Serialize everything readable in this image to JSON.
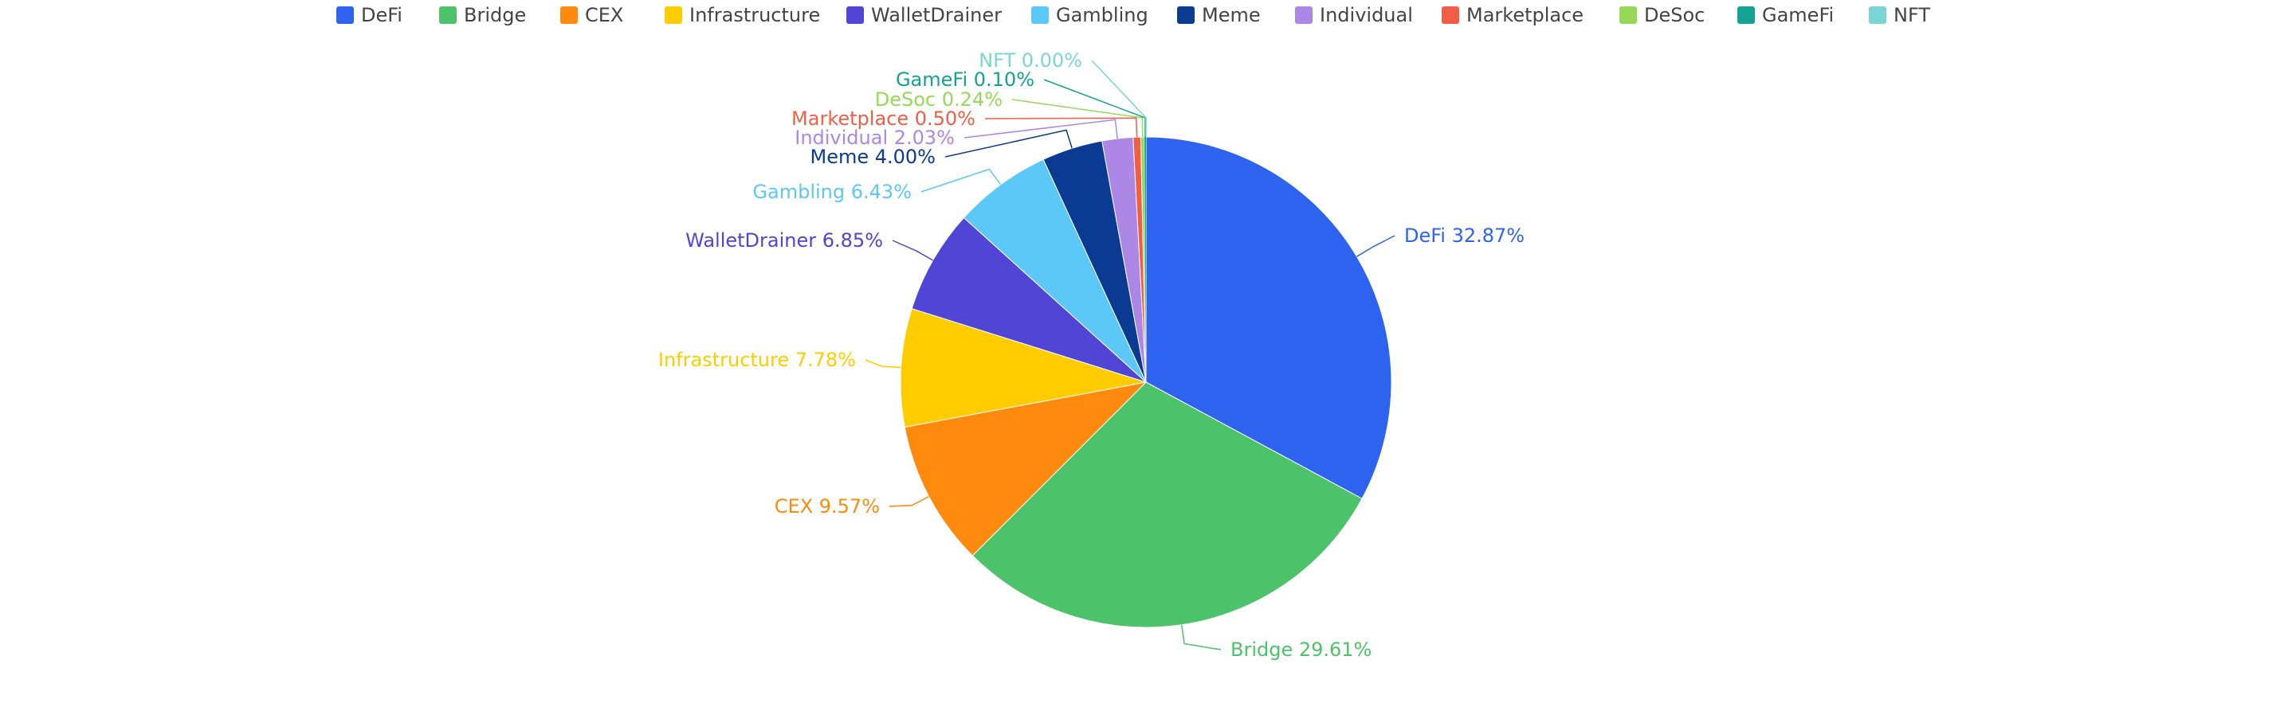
{
  "chart_data": {
    "type": "pie",
    "title": "",
    "legend_position": "top",
    "label_format": "{name} {pct}%",
    "categories": [
      "DeFi",
      "Bridge",
      "CEX",
      "Infrastructure",
      "WalletDrainer",
      "Gambling",
      "Meme",
      "Individual",
      "Marketplace",
      "DeSoc",
      "GameFi",
      "NFT"
    ],
    "values": [
      32.87,
      29.61,
      9.57,
      7.78,
      6.85,
      6.43,
      4.0,
      2.03,
      0.5,
      0.24,
      0.1,
      0.0
    ],
    "colors": [
      "#2e63f0",
      "#4cc36a",
      "#ff8a0d",
      "#ffcc00",
      "#5045d4",
      "#5cc8f7",
      "#0b3a92",
      "#ad87e6",
      "#f25e45",
      "#95d956",
      "#14a293",
      "#79d6d4"
    ],
    "labels": [
      "DeFi 32.87%",
      "Bridge 29.61%",
      "CEX 9.57%",
      "Infrastructure 7.78%",
      "WalletDrainer 6.85%",
      "Gambling 6.43%",
      "Meme 4.00%",
      "Individual 2.03%",
      "Marketplace 0.50%",
      "DeSoc 0.24%",
      "GameFi 0.10%",
      "NFT 0.00%"
    ]
  }
}
